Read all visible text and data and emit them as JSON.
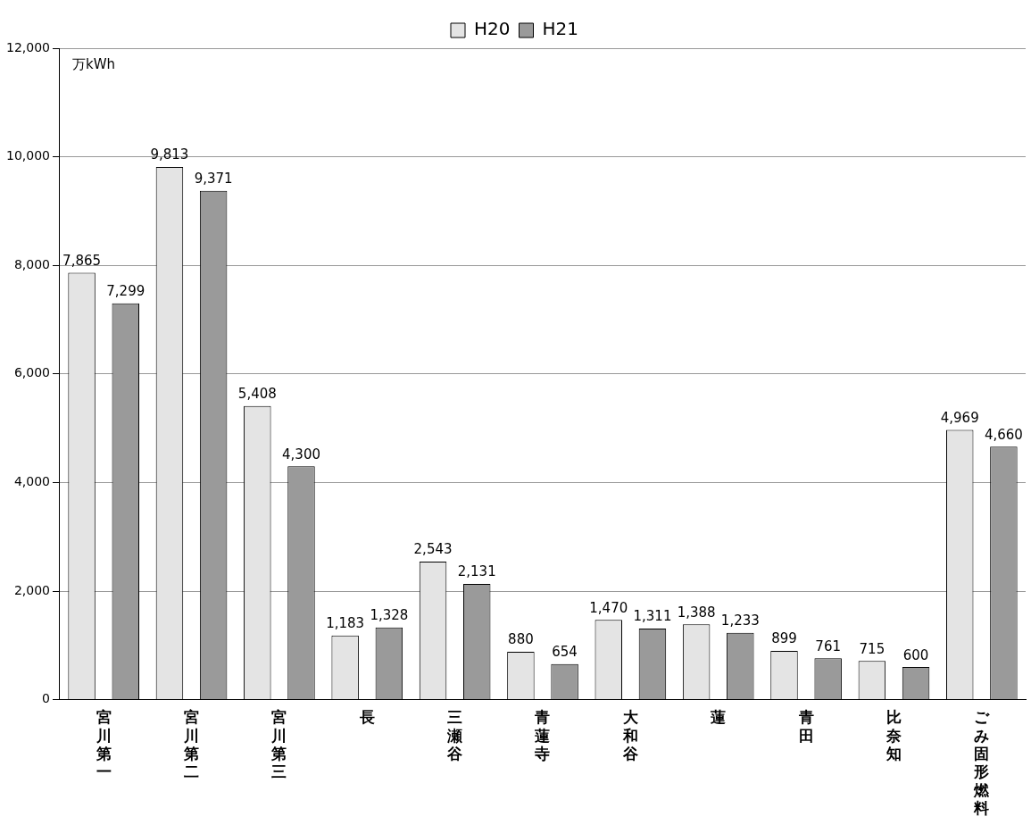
{
  "chart_data": {
    "type": "bar",
    "ylabel": "万kWh",
    "categories": [
      "宮川第一",
      "宮川第二",
      "宮川第三",
      "長",
      "三瀬谷",
      "青蓮寺",
      "大和谷",
      "蓮",
      "青田",
      "比奈知",
      "ごみ固形燃料"
    ],
    "series": [
      {
        "name": "H20",
        "color": "#e4e4e4",
        "values": [
          7865,
          9813,
          5408,
          1183,
          2543,
          880,
          1470,
          1388,
          899,
          715,
          4969
        ],
        "value_labels": [
          "7,865",
          "9,813",
          "5,408",
          "1,183",
          "2,543",
          "880",
          "1,470",
          "1,388",
          "899",
          "715",
          "4,969"
        ]
      },
      {
        "name": "H21",
        "color": "#9a9a9a",
        "values": [
          7299,
          9371,
          4300,
          1328,
          2131,
          654,
          1311,
          1233,
          761,
          600,
          4660
        ],
        "value_labels": [
          "7,299",
          "9,371",
          "4,300",
          "1,328",
          "2,131",
          "654",
          "1,311",
          "1,233",
          "761",
          "600",
          "4,660"
        ]
      }
    ],
    "ylim": [
      0,
      12000
    ],
    "yticks": [
      {
        "value": 0,
        "label": "0"
      },
      {
        "value": 2000,
        "label": "2,000"
      },
      {
        "value": 4000,
        "label": "4,000"
      },
      {
        "value": 6000,
        "label": "6,000"
      },
      {
        "value": 8000,
        "label": "8,000"
      },
      {
        "value": 10000,
        "label": "10,000"
      },
      {
        "value": 12000,
        "label": "12,000"
      }
    ],
    "grid": "y",
    "legend": "top"
  }
}
